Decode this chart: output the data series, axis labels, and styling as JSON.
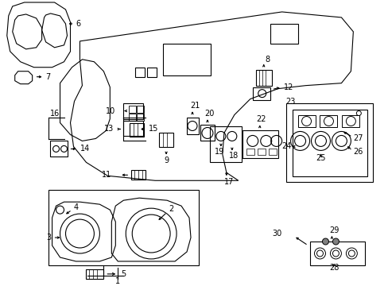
{
  "title": "",
  "background_color": "#ffffff",
  "line_color": "#000000",
  "fig_width": 4.89,
  "fig_height": 3.6,
  "dpi": 100
}
